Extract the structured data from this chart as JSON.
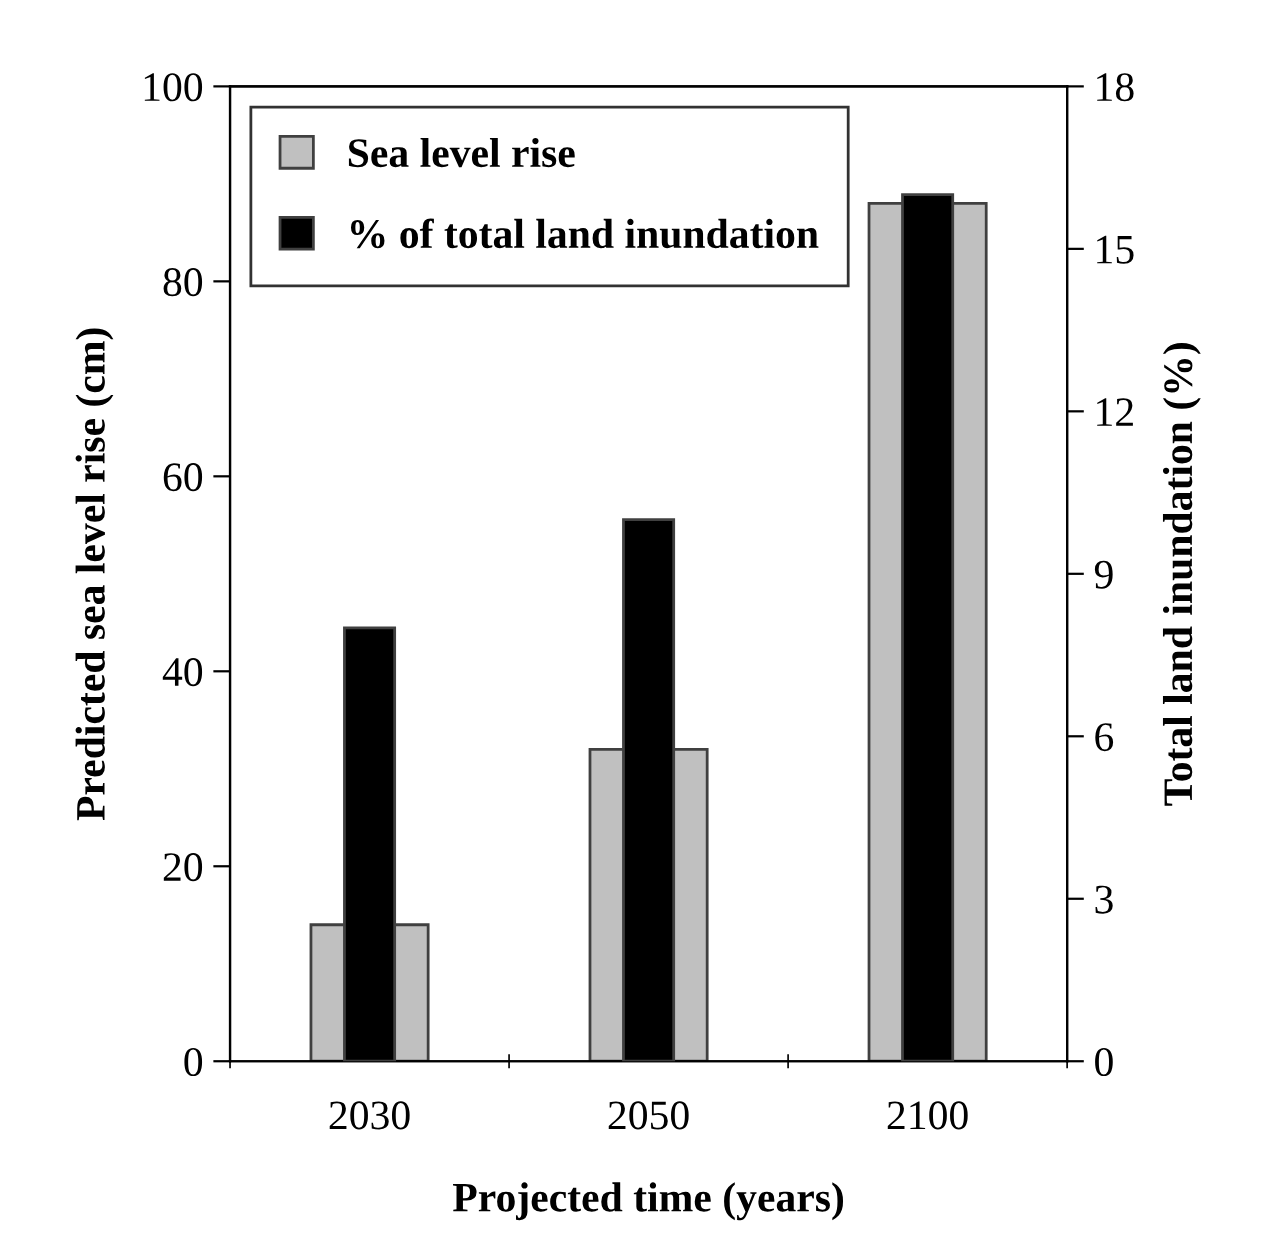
{
  "chart_data": {
    "type": "bar",
    "xlabel": "Projected time (years)",
    "ylabel": "Predicted sea level rise (cm)",
    "y2label": "Total land inundation (%)",
    "categories": [
      "2030",
      "2050",
      "2100"
    ],
    "series": [
      {
        "name": "Sea level rise",
        "color": "#c0c0c0",
        "values": [
          14,
          32,
          88
        ]
      },
      {
        "name": "% of total land inundation",
        "color": "#000000",
        "values": [
          8,
          10,
          16
        ],
        "axis": "y2"
      }
    ],
    "ylim": [
      0,
      100
    ],
    "yticks": [
      0,
      20,
      40,
      60,
      80,
      100
    ],
    "y2lim": [
      0,
      18
    ],
    "y2ticks": [
      0,
      3,
      6,
      9,
      12,
      15,
      18
    ],
    "grid": false,
    "legend": "top left"
  }
}
